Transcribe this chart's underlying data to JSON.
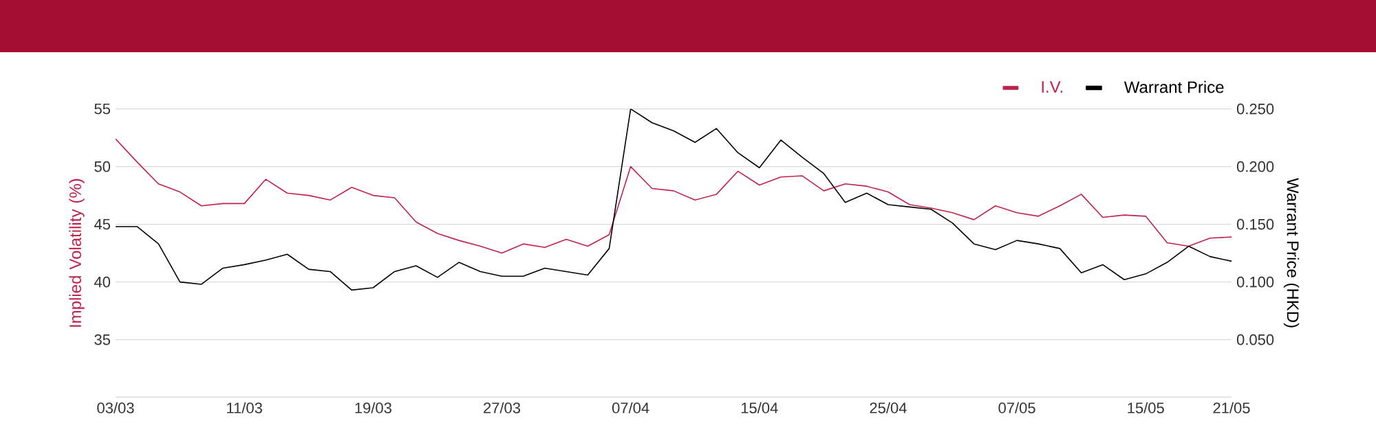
{
  "chart_data": {
    "type": "line",
    "categories": [
      "03/03",
      null,
      null,
      null,
      null,
      null,
      "11/03",
      null,
      null,
      null,
      null,
      null,
      "19/03",
      null,
      null,
      null,
      null,
      null,
      "27/03",
      null,
      null,
      null,
      null,
      null,
      "07/04",
      null,
      null,
      null,
      null,
      null,
      "15/04",
      null,
      null,
      null,
      null,
      null,
      "25/04",
      null,
      null,
      null,
      null,
      null,
      "07/05",
      null,
      null,
      null,
      null,
      null,
      "15/05",
      null,
      null,
      null,
      "21/05"
    ],
    "ylabel": "Implied Volatility (%)",
    "y2label": "Warrant Price (HKD)",
    "ylim": [
      30,
      55
    ],
    "yticks": [
      35,
      40,
      45,
      50,
      55
    ],
    "y2lim": [
      0,
      0.25
    ],
    "y2ticks": [
      {
        "value": 0.05,
        "label": "0.050"
      },
      {
        "value": 0.1,
        "label": "0.100"
      },
      {
        "value": 0.15,
        "label": "0.150"
      },
      {
        "value": 0.2,
        "label": "0.200"
      },
      {
        "value": 0.25,
        "label": "0.250"
      }
    ],
    "grid": "y",
    "legend": "top right",
    "series": [
      {
        "name": "I.V.",
        "color": "#c0224b",
        "values": [
          52.4,
          50.4,
          48.5,
          47.8,
          46.6,
          46.8,
          46.8,
          48.9,
          47.7,
          47.5,
          47.1,
          48.2,
          47.5,
          47.3,
          45.2,
          44.2,
          43.6,
          43.1,
          42.5,
          43.3,
          43.0,
          43.7,
          43.1,
          44.1,
          50.0,
          48.1,
          47.9,
          47.1,
          47.6,
          49.6,
          48.4,
          49.1,
          49.2,
          47.9,
          48.5,
          48.3,
          47.8,
          46.7,
          46.4,
          46.0,
          45.4,
          46.6,
          46.0,
          45.7,
          46.6,
          47.6,
          45.6,
          45.8,
          45.7,
          43.4,
          43.1,
          43.8,
          43.9
        ]
      },
      {
        "name": "Warrant Price",
        "color": "#000000",
        "axis": "y2",
        "values": [
          0.148,
          0.148,
          0.133,
          0.1,
          0.098,
          0.112,
          0.115,
          0.119,
          0.124,
          0.111,
          0.109,
          0.093,
          0.095,
          0.109,
          0.114,
          0.104,
          0.117,
          0.109,
          0.105,
          0.105,
          0.112,
          0.109,
          0.106,
          0.129,
          0.25,
          0.238,
          0.231,
          0.221,
          0.233,
          0.212,
          0.199,
          0.223,
          0.208,
          0.194,
          0.169,
          0.177,
          0.167,
          0.165,
          0.163,
          0.151,
          0.133,
          0.128,
          0.136,
          0.133,
          0.129,
          0.108,
          0.115,
          0.102,
          0.107,
          0.117,
          0.131,
          0.122,
          0.118
        ]
      }
    ]
  }
}
